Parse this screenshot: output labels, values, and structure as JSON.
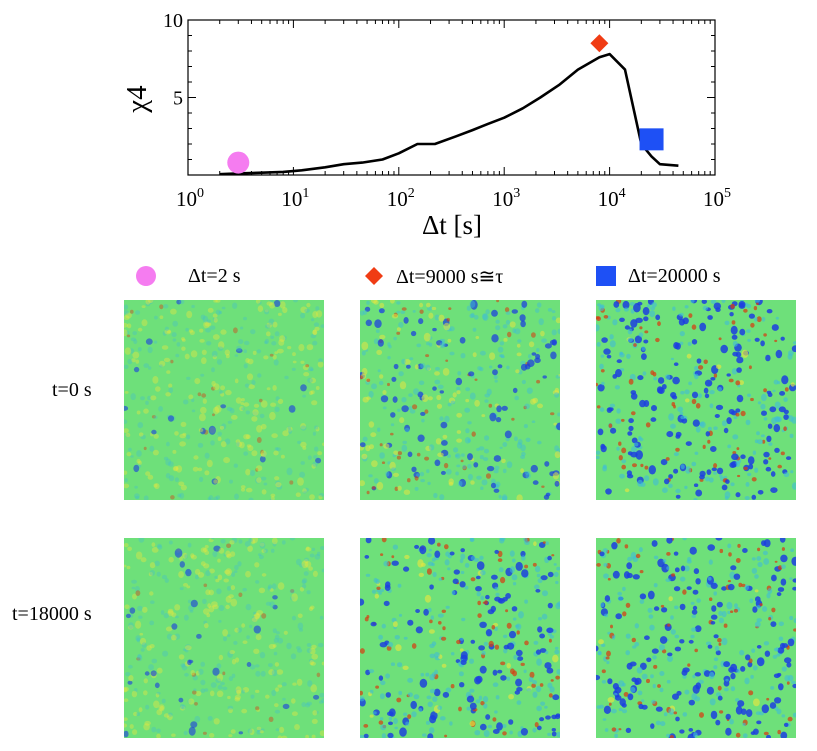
{
  "chart_data": {
    "type": "line",
    "title": "",
    "xlabel": "Δt [s]",
    "ylabel": "χ4",
    "xscale": "log",
    "xlim": [
      1,
      100000
    ],
    "ylim": [
      0,
      10
    ],
    "x_ticks": [
      1,
      10,
      100,
      1000,
      10000,
      100000
    ],
    "x_tick_labels": [
      {
        "base": "10",
        "exp": "0"
      },
      {
        "base": "10",
        "exp": "1"
      },
      {
        "base": "10",
        "exp": "2"
      },
      {
        "base": "10",
        "exp": "3"
      },
      {
        "base": "10",
        "exp": "4"
      },
      {
        "base": "10",
        "exp": "5"
      }
    ],
    "y_ticks": [
      5,
      10
    ],
    "y_tick_labels": [
      "5",
      "10"
    ],
    "series": [
      {
        "name": "χ4(Δt)",
        "color": "#000000",
        "x": [
          2,
          3,
          5,
          8,
          12,
          20,
          30,
          45,
          70,
          100,
          150,
          220,
          350,
          500,
          700,
          1000,
          1500,
          2200,
          3300,
          5000,
          8000,
          10000,
          14000,
          20000,
          25000,
          30000,
          45000
        ],
        "y": [
          0.05,
          0.1,
          0.15,
          0.2,
          0.3,
          0.5,
          0.7,
          0.8,
          1.0,
          1.4,
          2.0,
          2.0,
          2.5,
          2.9,
          3.3,
          3.7,
          4.3,
          5.0,
          5.8,
          6.8,
          7.6,
          7.8,
          6.8,
          2.0,
          1.2,
          0.7,
          0.6
        ]
      }
    ],
    "markers": [
      {
        "name": "pink-circle-marker",
        "shape": "circle",
        "color": "#f57cf0",
        "x": 3,
        "y": 0.8
      },
      {
        "name": "red-diamond-marker",
        "shape": "diamond",
        "color": "#f03c14",
        "x": 8000,
        "y": 8.5
      },
      {
        "name": "blue-square-marker",
        "shape": "square",
        "color": "#1e50f5",
        "x": 25000,
        "y": 2.3
      }
    ]
  },
  "legend": [
    {
      "label": "Δt=2 s",
      "shape": "circle",
      "color": "#f57cf0"
    },
    {
      "label": "Δt=9000 s≅τ",
      "shape": "diamond",
      "color": "#f03c14"
    },
    {
      "label": "Δt=20000 s",
      "shape": "square",
      "color": "#1e50f5"
    }
  ],
  "rows": [
    {
      "label": "t=0 s"
    },
    {
      "label": "t=18000 s"
    }
  ],
  "panel_intensity": [
    [
      0.15,
      0.45,
      0.75
    ],
    [
      0.15,
      0.7,
      0.75
    ]
  ],
  "colors": {
    "field_bg": "#6ee07a",
    "blob_blue": "#1c3ee0",
    "blob_yellow": "#e8e640",
    "blob_red": "#d83a10",
    "blob_cyan": "#3fbcd8"
  }
}
